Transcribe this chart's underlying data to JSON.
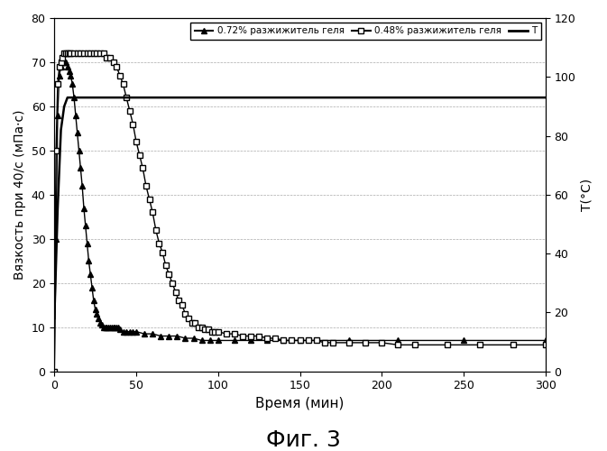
{
  "fig_label": "Фиг. 3",
  "xlabel": "Время (мин)",
  "ylabel": "Вязкость при 40/с (мПа·с)",
  "ylabel2": "Т(°С)",
  "xlim": [
    0,
    300
  ],
  "ylim": [
    0,
    80
  ],
  "ylim2": [
    0,
    120
  ],
  "xticks": [
    0,
    50,
    100,
    150,
    200,
    250,
    300
  ],
  "yticks_left": [
    0,
    10,
    20,
    30,
    40,
    50,
    60,
    70,
    80
  ],
  "yticks_right": [
    0,
    20,
    40,
    60,
    80,
    100,
    120
  ],
  "legend_labels": [
    "0.72% разжижитель геля",
    "0.48% разжижитель геля",
    "Т"
  ],
  "series1_x": [
    0,
    1,
    2,
    3,
    4,
    5,
    6,
    7,
    8,
    9,
    10,
    11,
    12,
    13,
    14,
    15,
    16,
    17,
    18,
    19,
    20,
    21,
    22,
    23,
    24,
    25,
    26,
    27,
    28,
    29,
    30,
    31,
    32,
    33,
    34,
    35,
    36,
    37,
    38,
    39,
    40,
    42,
    44,
    46,
    48,
    50,
    55,
    60,
    65,
    70,
    75,
    80,
    85,
    90,
    95,
    100,
    110,
    120,
    130,
    140,
    150,
    180,
    210,
    250,
    300
  ],
  "series1_y": [
    0,
    30,
    58,
    67,
    69,
    70,
    70,
    70,
    69,
    68,
    67,
    65,
    62,
    58,
    54,
    50,
    46,
    42,
    37,
    33,
    29,
    25,
    22,
    19,
    16,
    14,
    13,
    12,
    11,
    10.5,
    10,
    10,
    10,
    10,
    10,
    10,
    10,
    10,
    10,
    10,
    9.5,
    9,
    9,
    9,
    9,
    9,
    8.5,
    8.5,
    8,
    8,
    8,
    7.5,
    7.5,
    7,
    7,
    7,
    7,
    7,
    7,
    7,
    7,
    7,
    7,
    7,
    7
  ],
  "series2_x": [
    0,
    1,
    2,
    3,
    4,
    5,
    6,
    7,
    8,
    9,
    10,
    12,
    14,
    16,
    18,
    20,
    22,
    24,
    26,
    28,
    30,
    32,
    34,
    36,
    38,
    40,
    42,
    44,
    46,
    48,
    50,
    52,
    54,
    56,
    58,
    60,
    62,
    64,
    66,
    68,
    70,
    72,
    74,
    76,
    78,
    80,
    82,
    84,
    86,
    88,
    90,
    92,
    94,
    96,
    98,
    100,
    105,
    110,
    115,
    120,
    125,
    130,
    135,
    140,
    145,
    150,
    155,
    160,
    165,
    170,
    180,
    190,
    200,
    210,
    220,
    240,
    260,
    280,
    300
  ],
  "series2_y": [
    0,
    50,
    65,
    69,
    70,
    71,
    72,
    72,
    72,
    72,
    72,
    72,
    72,
    72,
    72,
    72,
    72,
    72,
    72,
    72,
    72,
    71,
    71,
    70,
    69,
    67,
    65,
    62,
    59,
    56,
    52,
    49,
    46,
    42,
    39,
    36,
    32,
    29,
    27,
    24,
    22,
    20,
    18,
    16,
    15,
    13,
    12,
    11,
    11,
    10,
    10,
    9.5,
    9.5,
    9,
    9,
    9,
    8.5,
    8.5,
    8,
    8,
    8,
    7.5,
    7.5,
    7,
    7,
    7,
    7,
    7,
    6.5,
    6.5,
    6.5,
    6.5,
    6.5,
    6,
    6,
    6,
    6,
    6,
    6
  ],
  "temp_x": [
    0,
    2,
    4,
    6,
    8,
    10,
    12,
    15,
    20,
    300
  ],
  "temp_y": [
    18,
    55,
    82,
    90,
    93,
    93,
    93,
    93,
    93,
    93
  ],
  "background_color": "#ffffff",
  "grid_color": "#aaaaaa",
  "series1_color": "#000000",
  "series2_color": "#000000",
  "temp_color": "#000000"
}
